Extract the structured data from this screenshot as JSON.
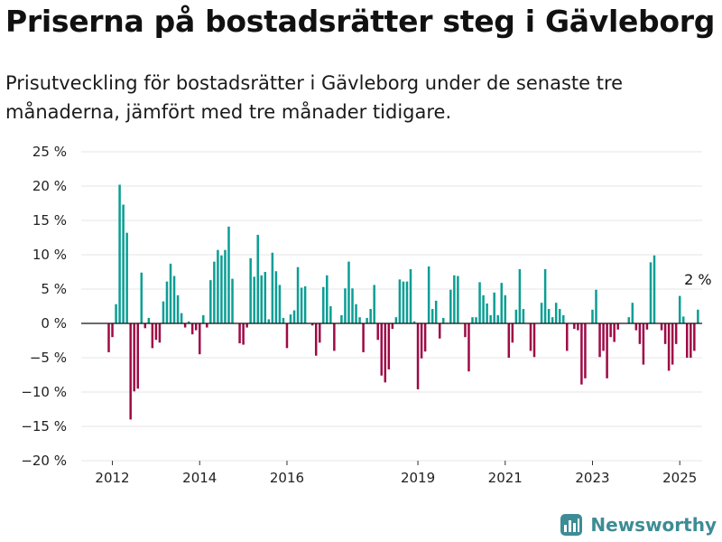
{
  "title": "Priserna på bostadsrätter steg i Gävleborg",
  "subtitle": "Prisutveckling för bostadsrätter i Gävleborg under de senaste tre månaderna, jämfört med tre månader tidigare.",
  "brand": {
    "name": "Newsworthy",
    "icon": "newsworthy-logo-icon"
  },
  "colors": {
    "positive": "#0a9e94",
    "negative": "#9e0a46",
    "grid": "#e6e6e6",
    "axis": "#111111"
  },
  "chart_data": {
    "type": "bar",
    "x_start": "2011-12",
    "x_step": "month",
    "ylim": [
      -20,
      25
    ],
    "yticks": [
      25,
      20,
      15,
      10,
      5,
      0,
      -5,
      -10,
      -15,
      -20
    ],
    "ytick_labels": [
      "25 %",
      "20 %",
      "15 %",
      "10 %",
      "5 %",
      "0 %",
      "−5 %",
      "−10 %",
      "−15 %",
      "−20 %"
    ],
    "xticks": [
      "2012",
      "2014",
      "2016",
      "2019",
      "2021",
      "2023",
      "2025"
    ],
    "grid": true,
    "annotation": {
      "text": "2 %",
      "target": "last"
    },
    "values": [
      -4.2,
      -2.0,
      2.8,
      20.2,
      17.3,
      13.2,
      -14.0,
      -9.9,
      -9.5,
      7.4,
      -0.7,
      0.8,
      -3.6,
      -2.4,
      -2.8,
      3.2,
      6.1,
      8.7,
      6.9,
      4.1,
      1.5,
      -0.6,
      0.3,
      -1.6,
      -1.0,
      -4.5,
      1.2,
      -0.6,
      6.3,
      9.0,
      10.7,
      9.9,
      10.7,
      14.1,
      6.5,
      0.0,
      -2.9,
      -3.1,
      -0.6,
      9.5,
      6.8,
      12.9,
      7.0,
      7.5,
      0.6,
      10.3,
      7.6,
      5.6,
      0.8,
      -3.6,
      1.3,
      1.9,
      8.2,
      5.2,
      5.4,
      0.0,
      -0.3,
      -4.7,
      -2.8,
      5.3,
      7.0,
      2.5,
      -4.0,
      0.0,
      1.2,
      5.1,
      9.0,
      5.1,
      2.8,
      0.9,
      -4.2,
      0.8,
      2.1,
      5.6,
      -2.4,
      -7.6,
      -8.6,
      -6.7,
      -0.8,
      0.9,
      6.4,
      6.1,
      6.1,
      7.9,
      0.3,
      -9.6,
      -5.1,
      -4.1,
      8.3,
      2.1,
      3.3,
      -2.2,
      0.8,
      0.1,
      4.9,
      7.0,
      6.9,
      0.0,
      -2.0,
      -7.0,
      0.9,
      0.9,
      6.0,
      4.1,
      2.9,
      1.2,
      4.5,
      1.2,
      5.9,
      4.1,
      -5.0,
      -2.8,
      2.0,
      7.9,
      2.1,
      0.0,
      -4.0,
      -4.9,
      0.0,
      3.0,
      7.9,
      2.1,
      0.9,
      3.0,
      2.1,
      1.2,
      -4.0,
      0.0,
      -0.8,
      -1.0,
      -8.9,
      -8.0,
      0.0,
      2.0,
      4.9,
      -4.9,
      -4.0,
      -8.0,
      -2.0,
      -2.7,
      -0.9,
      0.0,
      0.0,
      0.9,
      3.0,
      -1.0,
      -3.0,
      -6.0,
      -0.9,
      8.9,
      9.9,
      0.0,
      -1.0,
      -3.0,
      -6.9,
      -6.0,
      -3.0,
      4.0,
      1.0,
      -5.0,
      -5.0,
      -4.0,
      2.0
    ]
  }
}
